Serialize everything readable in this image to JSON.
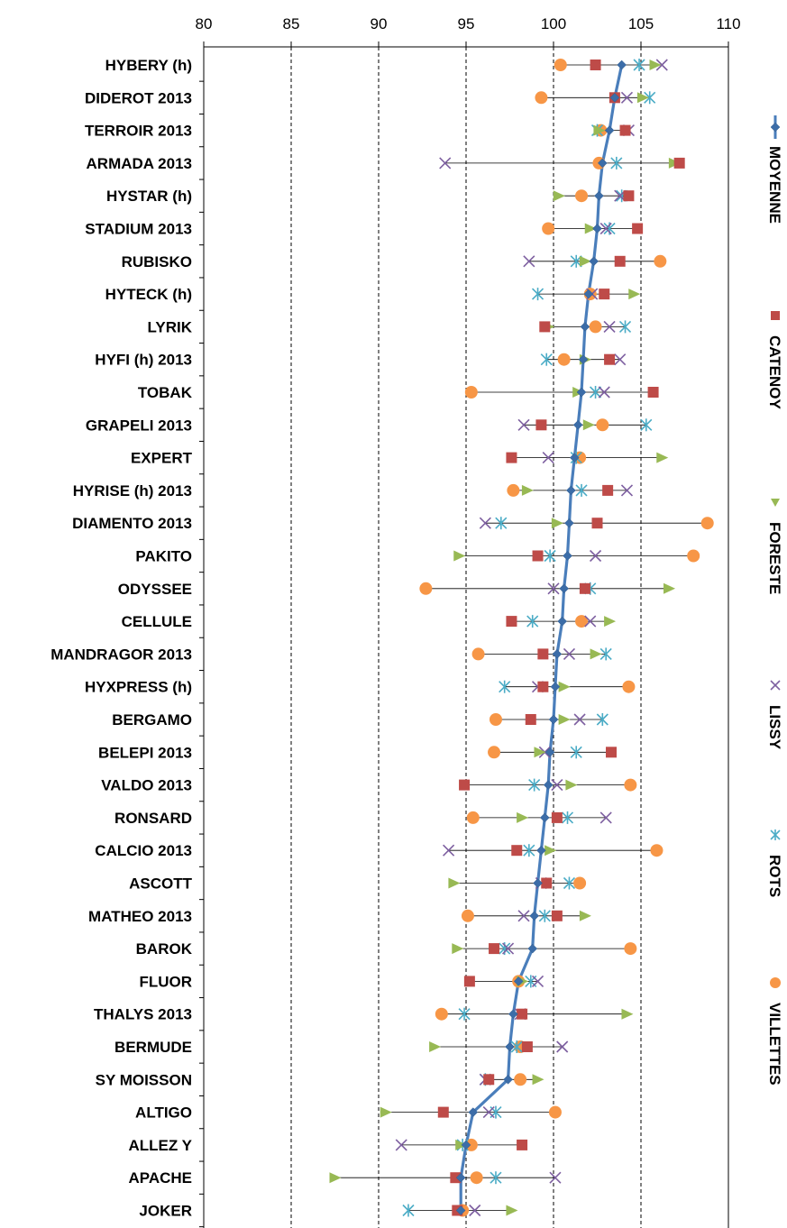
{
  "chart_data": {
    "type": "scatter",
    "orientation": "horizontal",
    "xlim": [
      80,
      110
    ],
    "x_ticks": [
      80,
      85,
      90,
      95,
      100,
      105,
      110
    ],
    "x_axis_position": "top",
    "grid": "vertical dashed",
    "legend_placement": "right (rotated)",
    "categories": [
      "HYBERY (h)",
      "DIDEROT  2013",
      "TERROIR  2013",
      "ARMADA  2013",
      "HYSTAR (h)",
      "STADIUM  2013",
      "RUBISKO",
      "HYTECK (h)",
      "LYRIK",
      "HYFI (h) 2013",
      "TOBAK",
      "GRAPELI  2013",
      "EXPERT",
      "HYRISE (h) 2013",
      "DIAMENTO  2013",
      "PAKITO",
      "ODYSSEE",
      "CELLULE",
      "MANDRAGOR  2013",
      "HYXPRESS (h)",
      "BERGAMO",
      "BELEPI  2013",
      "VALDO  2013",
      "RONSARD",
      "CALCIO  2013",
      "ASCOTT",
      "MATHEO  2013",
      "BAROK",
      "FLUOR",
      "THALYS  2013",
      "BERMUDE",
      "SY MOISSON",
      "ALTIGO",
      "ALLEZ Y",
      "APACHE",
      "JOKER"
    ],
    "series": [
      {
        "name": "MOYENNE",
        "marker": "diamond",
        "color": "#4a7ebb",
        "values": [
          103.9,
          103.5,
          103.2,
          102.8,
          102.6,
          102.5,
          102.3,
          102.0,
          101.8,
          101.7,
          101.6,
          101.4,
          101.2,
          101.0,
          100.9,
          100.8,
          100.6,
          100.5,
          100.2,
          100.1,
          100.0,
          99.8,
          99.7,
          99.5,
          99.3,
          99.1,
          98.9,
          98.8,
          98.0,
          97.7,
          97.5,
          97.4,
          95.4,
          95.0,
          94.7,
          94.7
        ]
      },
      {
        "name": "CATENOY",
        "marker": "square",
        "color": "#be4b48",
        "values": [
          102.4,
          103.5,
          104.1,
          107.2,
          104.3,
          104.8,
          103.8,
          102.9,
          99.5,
          103.2,
          105.7,
          99.3,
          97.6,
          103.1,
          102.5,
          99.1,
          101.8,
          97.6,
          99.4,
          99.4,
          98.7,
          103.3,
          94.9,
          100.2,
          97.9,
          99.6,
          100.2,
          96.6,
          95.2,
          98.2,
          98.5,
          96.3,
          93.7,
          98.2,
          94.4,
          94.5
        ]
      },
      {
        "name": "FORESTE",
        "marker": "triangle",
        "color": "#98b954",
        "values": [
          105.8,
          105.1,
          102.6,
          106.9,
          100.3,
          102.1,
          101.8,
          104.6,
          99.7,
          101.8,
          101.4,
          102.0,
          106.2,
          98.5,
          100.2,
          94.6,
          106.6,
          103.2,
          102.4,
          100.6,
          100.6,
          99.2,
          101.0,
          98.2,
          99.8,
          94.3,
          101.8,
          94.5,
          98.2,
          104.2,
          93.2,
          99.1,
          90.4,
          94.7,
          87.5,
          97.6
        ]
      },
      {
        "name": "LISSY",
        "marker": "x",
        "color": "#7d5fa0",
        "values": [
          106.2,
          104.2,
          104.3,
          93.8,
          103.8,
          103.0,
          98.6,
          102.2,
          103.2,
          103.8,
          102.9,
          98.3,
          99.7,
          104.2,
          96.1,
          102.4,
          100.0,
          102.1,
          100.9,
          99.1,
          101.5,
          99.5,
          100.2,
          103.0,
          94.0,
          99.3,
          98.3,
          97.4,
          99.1,
          98.1,
          100.5,
          96.1,
          96.3,
          91.3,
          100.1,
          95.5
        ]
      },
      {
        "name": "ROTS",
        "marker": "star",
        "color": "#4bacc6",
        "values": [
          104.9,
          105.5,
          102.5,
          103.6,
          103.9,
          103.2,
          101.3,
          99.1,
          104.1,
          99.6,
          102.4,
          105.3,
          101.3,
          101.6,
          97.0,
          99.8,
          102.1,
          98.8,
          103.0,
          97.2,
          102.8,
          101.3,
          98.9,
          100.8,
          98.6,
          100.9,
          99.5,
          97.2,
          98.7,
          94.9,
          97.9,
          96.1,
          96.7,
          94.8,
          96.7,
          91.7
        ]
      },
      {
        "name": "VILLETTES",
        "marker": "circle",
        "color": "#f79646",
        "values": [
          100.4,
          99.3,
          102.7,
          102.6,
          101.6,
          99.7,
          106.1,
          102.1,
          102.4,
          100.6,
          95.3,
          102.8,
          101.5,
          97.7,
          108.8,
          108.0,
          92.7,
          101.6,
          95.7,
          104.3,
          96.7,
          96.6,
          104.4,
          95.4,
          105.9,
          101.5,
          95.1,
          104.4,
          98.0,
          93.6,
          98.1,
          98.1,
          100.1,
          95.3,
          95.6,
          94.8
        ]
      }
    ]
  }
}
